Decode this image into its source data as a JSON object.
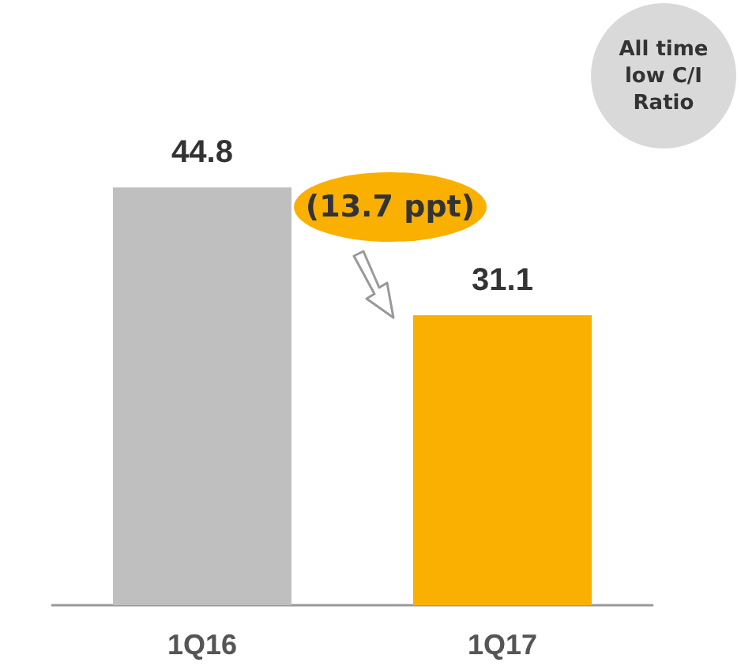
{
  "chart_data": {
    "type": "bar",
    "categories": [
      "1Q16",
      "1Q17"
    ],
    "values": [
      44.8,
      31.1
    ],
    "colors": [
      "#bfbfbf",
      "#f9b000"
    ],
    "data_labels": true,
    "annotations": [
      "(13.7 ppt)",
      "All time low C/I Ratio"
    ]
  }
}
